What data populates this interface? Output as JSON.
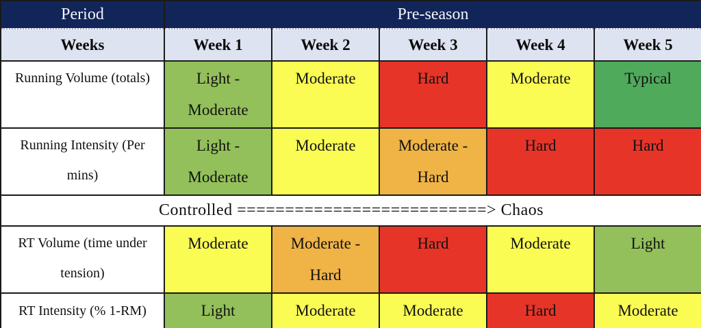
{
  "title": "Pre-season training periodization table",
  "palette": {
    "navy": "#122559",
    "lavender": "#dee3f1",
    "green_light": "#93c05a",
    "green": "#4faa5b",
    "yellow": "#fafc54",
    "orange": "#f0b346",
    "red": "#e73428",
    "white": "#ffffff",
    "border_black": "#1a1a1a",
    "header_text": "#f5f6fa"
  },
  "header": {
    "period_label": "Period",
    "season_label": "Pre-season"
  },
  "week_header": {
    "label": "Weeks",
    "weeks": [
      "Week 1",
      "Week 2",
      "Week 3",
      "Week 4",
      "Week 5"
    ]
  },
  "rows": [
    {
      "type": "data",
      "label": "Running Volume (totals)",
      "cells": [
        {
          "text": "Light - Moderate",
          "color": "green_light"
        },
        {
          "text": "Moderate",
          "color": "yellow"
        },
        {
          "text": "Hard",
          "color": "red"
        },
        {
          "text": "Moderate",
          "color": "yellow"
        },
        {
          "text": "Typical",
          "color": "green"
        }
      ]
    },
    {
      "type": "data",
      "label": "Running Intensity (Per mins)",
      "cells": [
        {
          "text": "Light - Moderate",
          "color": "green_light"
        },
        {
          "text": "Moderate",
          "color": "yellow"
        },
        {
          "text": "Moderate - Hard",
          "color": "orange"
        },
        {
          "text": "Hard",
          "color": "red"
        },
        {
          "text": "Hard",
          "color": "red"
        }
      ]
    },
    {
      "type": "divider",
      "text": "Controlled ==========================> Chaos"
    },
    {
      "type": "data",
      "label": "RT Volume (time under tension)",
      "cells": [
        {
          "text": "Moderate",
          "color": "yellow"
        },
        {
          "text": "Moderate - Hard",
          "color": "orange"
        },
        {
          "text": "Hard",
          "color": "red"
        },
        {
          "text": "Moderate",
          "color": "yellow"
        },
        {
          "text": "Light",
          "color": "green_light"
        }
      ]
    },
    {
      "type": "data",
      "label": "RT Intensity (% 1-RM)",
      "cells": [
        {
          "text": "Light",
          "color": "green_light"
        },
        {
          "text": "Moderate",
          "color": "yellow"
        },
        {
          "text": "Moderate",
          "color": "yellow"
        },
        {
          "text": "Hard",
          "color": "red"
        },
        {
          "text": "Moderate",
          "color": "yellow"
        }
      ]
    }
  ]
}
